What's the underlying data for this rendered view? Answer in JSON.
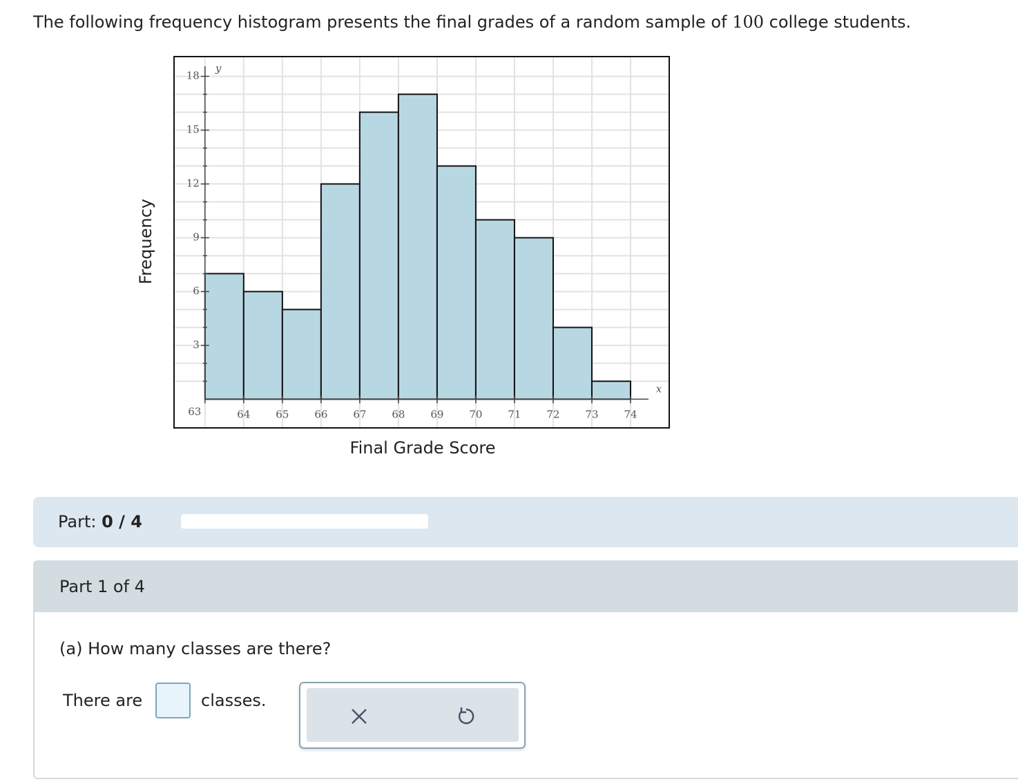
{
  "prompt": {
    "before": "The following frequency histogram presents the final grades of a random sample of",
    "number": 100,
    "after": "college students."
  },
  "chart_data": {
    "type": "histogram",
    "x_label": "Final Grade Score",
    "y_label": "Frequency",
    "x_axis_symbol": "x",
    "y_axis_symbol": "y",
    "bins": [
      63,
      64,
      65,
      66,
      67,
      68,
      69,
      70,
      71,
      72,
      73,
      74
    ],
    "values": [
      7,
      6,
      5,
      12,
      16,
      17,
      13,
      10,
      9,
      4,
      1
    ],
    "color": "#b7d7e3",
    "xlim": [
      62.2,
      75
    ],
    "ylim": [
      -1.6,
      19.1
    ],
    "xticks": [
      63,
      64,
      65,
      66,
      67,
      68,
      69,
      70,
      71,
      72,
      73,
      74
    ],
    "yticks": [
      3,
      6,
      9,
      12,
      15,
      18
    ],
    "y_minor_ticks": [
      1,
      2,
      4,
      5,
      7,
      8,
      10,
      11,
      13,
      14,
      16,
      17
    ],
    "grid": true
  },
  "progress": {
    "label": "Part:",
    "score": "0 / 4"
  },
  "part": {
    "header": "Part 1 of 4",
    "question": "(a) How many classes are there?",
    "answer_before": "There are",
    "answer_after": "classes."
  }
}
